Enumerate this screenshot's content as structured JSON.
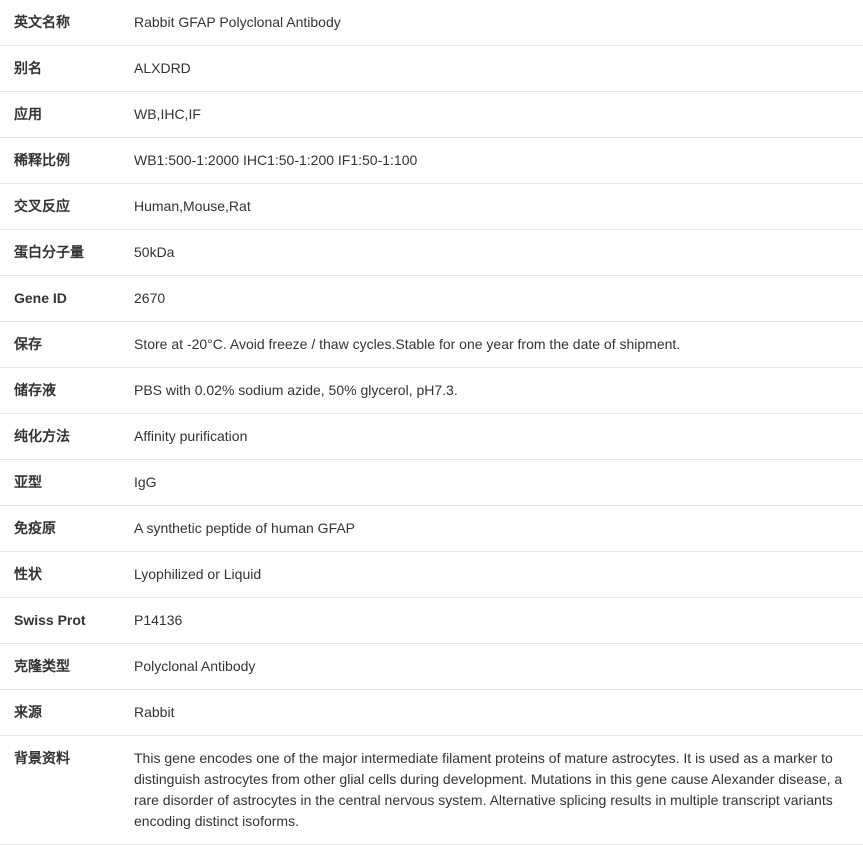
{
  "table": {
    "border_color": "#e5e5e5",
    "text_color": "#333333",
    "font_size": 14,
    "label_width": 120,
    "row_padding_v": 12,
    "row_padding_h": 14
  },
  "rows": [
    {
      "label": "英文名称",
      "value": "Rabbit GFAP Polyclonal Antibody"
    },
    {
      "label": "别名",
      "value": "ALXDRD"
    },
    {
      "label": "应用",
      "value": "WB,IHC,IF"
    },
    {
      "label": "稀释比例",
      "value": "WB1:500-1:2000 IHC1:50-1:200 IF1:50-1:100"
    },
    {
      "label": "交叉反应",
      "value": "Human,Mouse,Rat"
    },
    {
      "label": "蛋白分子量",
      "value": "50kDa"
    },
    {
      "label": "Gene ID",
      "value": "2670"
    },
    {
      "label": "保存",
      "value": "Store at -20°C. Avoid freeze / thaw cycles.Stable for one year from the date of shipment."
    },
    {
      "label": "储存液",
      "value": "PBS with 0.02% sodium azide, 50% glycerol, pH7.3."
    },
    {
      "label": "纯化方法",
      "value": "Affinity purification"
    },
    {
      "label": "亚型",
      "value": "IgG"
    },
    {
      "label": "免疫原",
      "value": "A synthetic peptide of human GFAP"
    },
    {
      "label": "性状",
      "value": "Lyophilized or Liquid"
    },
    {
      "label": "Swiss Prot",
      "value": "P14136"
    },
    {
      "label": "克隆类型",
      "value": "Polyclonal Antibody"
    },
    {
      "label": "来源",
      "value": "Rabbit"
    },
    {
      "label": "背景资料",
      "value": "This gene encodes one of the major intermediate filament proteins of mature astrocytes. It is used as a marker to distinguish astrocytes from other glial cells during development. Mutations in this gene cause Alexander disease, a rare disorder of astrocytes in the central nervous system. Alternative splicing results in multiple transcript variants encoding distinct isoforms."
    }
  ]
}
